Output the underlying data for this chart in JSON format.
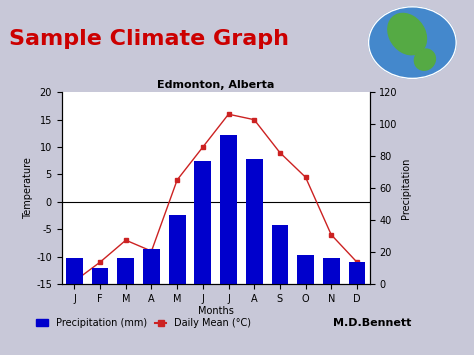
{
  "title": "Edmonton, Alberta",
  "months": [
    "J",
    "F",
    "M",
    "A",
    "M",
    "J",
    "J",
    "A",
    "S",
    "O",
    "N",
    "D"
  ],
  "precipitation_mm": [
    16,
    10,
    16,
    22,
    43,
    77,
    93,
    78,
    37,
    18,
    16,
    14
  ],
  "temperature_c": [
    -14.5,
    -11.0,
    -7.0,
    -9.0,
    4.0,
    10.0,
    16.0,
    15.0,
    9.0,
    4.5,
    -6.0,
    -11.0
  ],
  "bar_color": "#0000cc",
  "line_color": "#cc2222",
  "marker_color": "#cc2222",
  "slide_bg": "#c8c8d8",
  "chart_bg": "#ffffff",
  "title_color": "#cc0000",
  "title_text": "Sample Climate Graph",
  "temp_ylim": [
    -15,
    20
  ],
  "temp_yticks": [
    -15,
    -10,
    -5,
    0,
    5,
    10,
    15,
    20
  ],
  "precip_ylim": [
    0,
    120
  ],
  "precip_yticks": [
    0,
    20,
    40,
    60,
    80,
    100,
    120
  ],
  "xlabel": "Months",
  "ylabel_left": "Temperature",
  "ylabel_right": "Precipitation",
  "legend_precip": "Precipitation (mm)",
  "legend_temp": "Daily Mean (°C)",
  "attribution": "M.D.Bennett"
}
